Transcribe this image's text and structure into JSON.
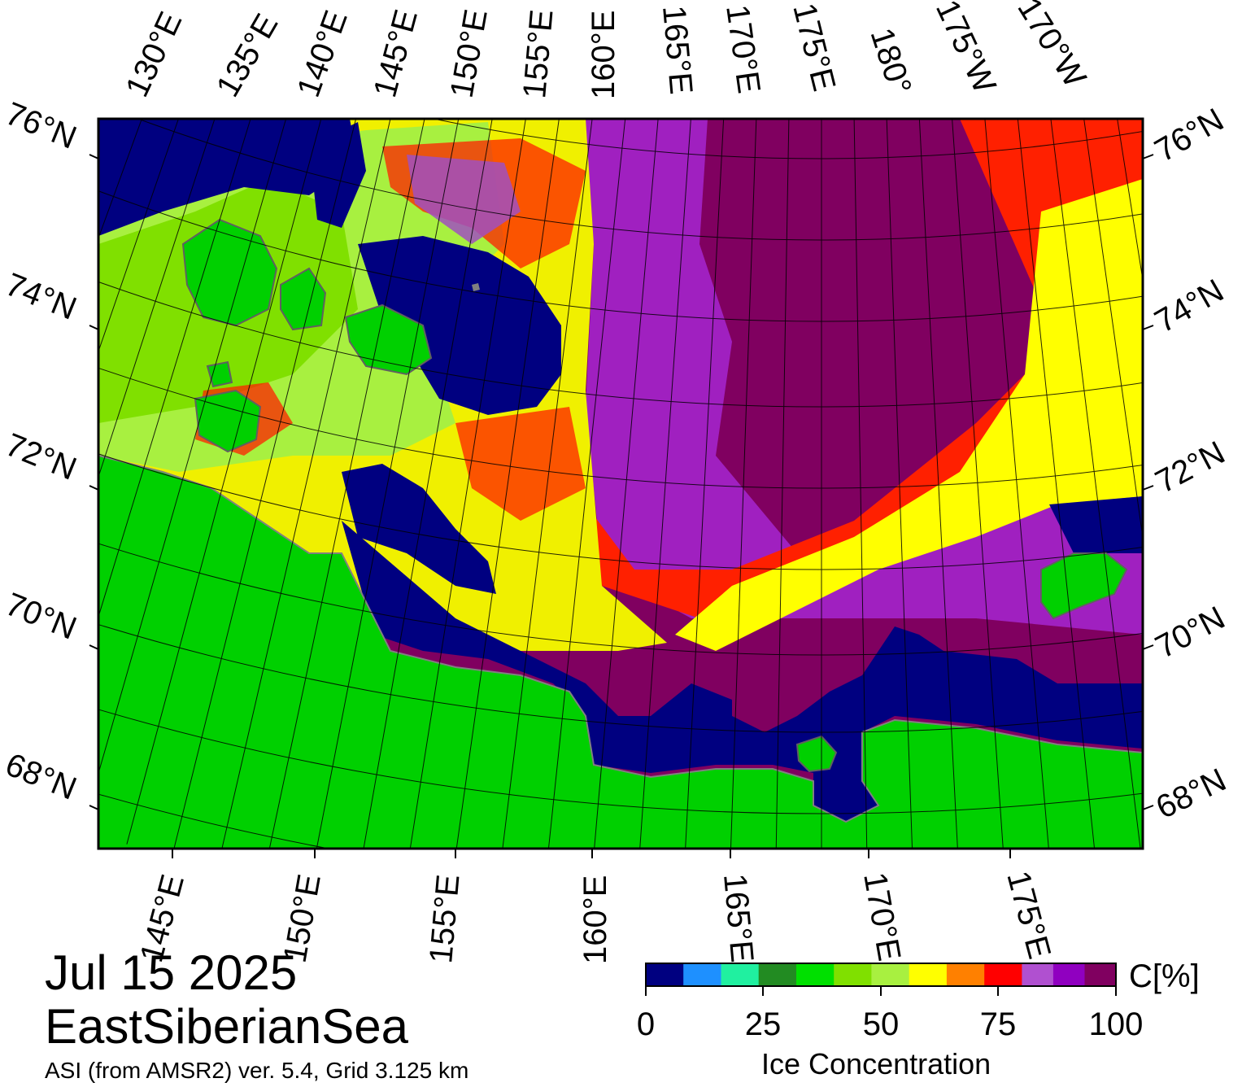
{
  "map": {
    "date": "Jul 15 2025",
    "region": "EastSiberianSea",
    "source": "ASI (from AMSR2) ver. 5.4,  Grid 3.125 km",
    "land_color": "#00d000",
    "water_color": "#000080",
    "coast_color": "#808080",
    "top_lon_labels": [
      "130°E",
      "135°E",
      "140°E",
      "145°E",
      "150°E",
      "155°E",
      "160°E",
      "165°E",
      "170°E",
      "175°E",
      "180°",
      "175°W",
      "170°W"
    ],
    "bottom_lon_labels": [
      "145°E",
      "150°E",
      "155°E",
      "160°E",
      "165°E",
      "170°E",
      "175°E"
    ],
    "left_lat_labels": [
      "76°N",
      "74°N",
      "72°N",
      "70°N",
      "68°N"
    ],
    "right_lat_labels": [
      "76°N",
      "74°N",
      "72°N",
      "70°N",
      "68°N"
    ]
  },
  "colorbar": {
    "title": "Ice Concentration",
    "unit": "C[%]",
    "tick_labels": [
      "0",
      "25",
      "50",
      "75",
      "100"
    ],
    "colors": [
      "#000080",
      "#1e90ff",
      "#20f0a0",
      "#228b22",
      "#00e000",
      "#80e000",
      "#a8f040",
      "#ffff00",
      "#ff8000",
      "#ff0000",
      "#b050d0",
      "#9000c0",
      "#800060"
    ]
  }
}
